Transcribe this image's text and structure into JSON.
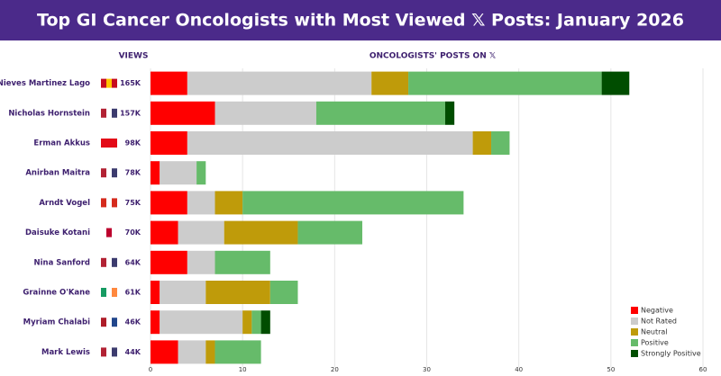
{
  "chart_data": {
    "type": "bar",
    "orientation": "horizontal",
    "stacked": true,
    "title": "Top GI Cancer Oncologists with Most Viewed 𝕏 Posts: January 2026",
    "views_label": "VIEWS",
    "x_label": "ONCOLOGISTS' POSTS ON 𝕏",
    "categories": [
      "Nieves Martinez Lago",
      "Nicholas Hornstein",
      "Erman Akkus",
      "Anirban Maitra",
      "Arndt Vogel",
      "Daisuke Kotani",
      "Nina Sanford",
      "Grainne O'Kane",
      "Myriam Chalabi",
      "Mark Lewis"
    ],
    "views": [
      "165K",
      "157K",
      "98K",
      "78K",
      "75K",
      "70K",
      "64K",
      "61K",
      "46K",
      "44K"
    ],
    "series": [
      {
        "name": "Negative",
        "color": "#ff0000",
        "values": [
          4,
          7,
          4,
          1,
          4,
          3,
          4,
          1,
          1,
          3
        ]
      },
      {
        "name": "Not Rated",
        "color": "#cccccc",
        "values": [
          20,
          11,
          31,
          4,
          3,
          5,
          3,
          5,
          9,
          3
        ]
      },
      {
        "name": "Neutral",
        "color": "#bf9b0a",
        "values": [
          4,
          0,
          2,
          0,
          3,
          8,
          0,
          7,
          1,
          1
        ]
      },
      {
        "name": "Positive",
        "color": "#66bb6a",
        "values": [
          21,
          14,
          2,
          1,
          24,
          7,
          6,
          3,
          1,
          5
        ]
      },
      {
        "name": "Strongly Positive",
        "color": "#004d00",
        "values": [
          3,
          1,
          0,
          0,
          0,
          0,
          0,
          0,
          1,
          0
        ]
      }
    ],
    "xlim": [
      0,
      60
    ],
    "xticks": [
      0,
      10,
      20,
      30,
      40,
      50,
      60
    ],
    "grid": true,
    "legend": "lower right"
  }
}
